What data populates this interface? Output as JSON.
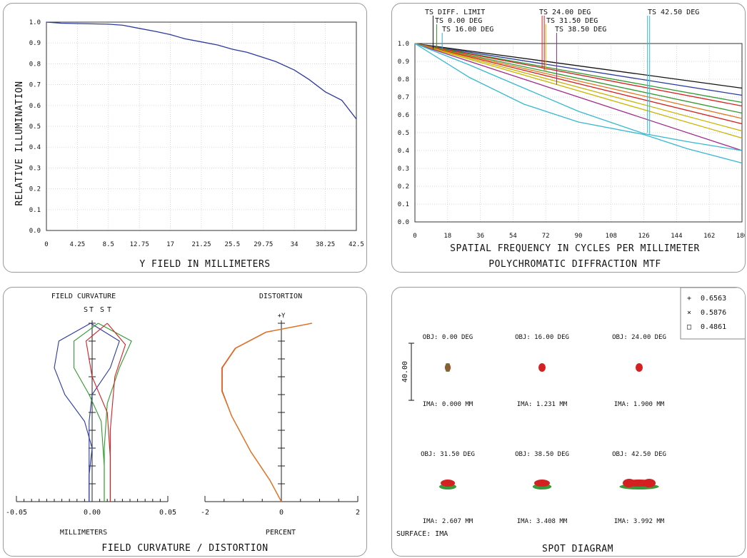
{
  "chart_data": [
    {
      "type": "line",
      "xlabel": "Y FIELD IN MILLIMETERS",
      "ylabel": "RELATIVE ILLUMINATION",
      "xlim": [
        0,
        42.5
      ],
      "ylim": [
        0,
        1.0
      ],
      "x_ticks": [
        "0",
        "4.25",
        "8.5",
        "12.75",
        "17",
        "21.25",
        "25.5",
        "29.75",
        "34",
        "38.25",
        "42.5"
      ],
      "y_ticks": [
        "0.0",
        "0.1",
        "0.2",
        "0.3",
        "0.4",
        "0.5",
        "0.6",
        "0.7",
        "0.8",
        "0.9",
        "1.0"
      ],
      "grid": true,
      "color": "#2b3a9c",
      "series": [
        {
          "x": [
            0,
            2,
            4.25,
            8.5,
            10.5,
            12.75,
            15,
            17,
            19,
            21.25,
            23.5,
            25.5,
            27.5,
            29.75,
            31.5,
            34,
            36,
            38.25,
            40.5,
            42.5
          ],
          "y": [
            1.0,
            0.995,
            0.993,
            0.99,
            0.985,
            0.97,
            0.955,
            0.94,
            0.92,
            0.905,
            0.89,
            0.87,
            0.855,
            0.83,
            0.81,
            0.77,
            0.725,
            0.665,
            0.625,
            0.535
          ]
        }
      ]
    },
    {
      "type": "line",
      "title": "POLYCHROMATIC DIFFRACTION MTF",
      "xlabel": "SPATIAL FREQUENCY IN CYCLES PER MILLIMETER",
      "xlim": [
        0,
        180
      ],
      "ylim": [
        0,
        1.0
      ],
      "x_ticks": [
        "0",
        "18",
        "36",
        "54",
        "72",
        "90",
        "108",
        "126",
        "144",
        "162",
        "180"
      ],
      "y_ticks": [
        "0.0",
        "0.1",
        "0.2",
        "0.3",
        "0.4",
        "0.5",
        "0.6",
        "0.7",
        "0.8",
        "0.9",
        "1.0"
      ],
      "grid": true,
      "legend": [
        {
          "label": "TS DIFF. LIMIT",
          "color": "#111111"
        },
        {
          "label": "TS 0.00 DEG",
          "color": "#2e9a2e"
        },
        {
          "label": "TS 16.00 DEG",
          "color": "#2bb0c8"
        },
        {
          "label": "TS 24.00 DEG",
          "color": "#d42020"
        },
        {
          "label": "TS 31.50 DEG",
          "color": "#c8b400"
        },
        {
          "label": "TS 38.50 DEG",
          "color": "#a02a8c"
        },
        {
          "label": "TS 42.50 DEG",
          "color": "#35b8d0"
        }
      ],
      "series": [
        {
          "color": "#111111",
          "x": [
            0,
            180
          ],
          "y": [
            1.0,
            0.75
          ]
        },
        {
          "color": "#2b3a9c",
          "x": [
            0,
            180
          ],
          "y": [
            1.0,
            0.71
          ]
        },
        {
          "color": "#2e9a2e",
          "x": [
            0,
            180
          ],
          "y": [
            1.0,
            0.67
          ]
        },
        {
          "color": "#d42020",
          "x": [
            0,
            180
          ],
          "y": [
            1.0,
            0.65
          ]
        },
        {
          "color": "#2e9a2e",
          "x": [
            0,
            180
          ],
          "y": [
            1.0,
            0.61
          ]
        },
        {
          "color": "#e07820",
          "x": [
            0,
            180
          ],
          "y": [
            1.0,
            0.58
          ]
        },
        {
          "color": "#d42020",
          "x": [
            0,
            180
          ],
          "y": [
            1.0,
            0.55
          ]
        },
        {
          "color": "#c8b400",
          "x": [
            0,
            180
          ],
          "y": [
            1.0,
            0.51
          ]
        },
        {
          "color": "#c8b400",
          "x": [
            0,
            180
          ],
          "y": [
            1.0,
            0.47
          ]
        },
        {
          "color": "#a02a8c",
          "x": [
            0,
            180
          ],
          "y": [
            1.0,
            0.4
          ]
        },
        {
          "color": "#35b8d0",
          "x": [
            0,
            30,
            60,
            90,
            126,
            150,
            180
          ],
          "y": [
            1.0,
            0.88,
            0.75,
            0.62,
            0.495,
            0.45,
            0.4
          ]
        },
        {
          "color": "#35b8d0",
          "x": [
            0,
            30,
            60,
            90,
            126,
            150,
            180
          ],
          "y": [
            1.0,
            0.81,
            0.66,
            0.56,
            0.49,
            0.41,
            0.33
          ]
        }
      ]
    },
    {
      "type": "line",
      "title": "FIELD CURVATURE",
      "xlabel": "MILLIMETERS",
      "xlim": [
        -0.05,
        0.05
      ],
      "x_ticks": [
        "-0.05",
        "0.00",
        "0.05"
      ],
      "labels": [
        "S",
        "T",
        "S",
        "T"
      ],
      "series": [
        {
          "color": "#2b3a9c",
          "x": [
            -0.001,
            -0.022,
            -0.025,
            -0.018,
            -0.005,
            0.0,
            -0.002,
            -0.002
          ],
          "y": [
            1.0,
            0.9,
            0.75,
            0.6,
            0.45,
            0.3,
            0.15,
            0.0
          ]
        },
        {
          "color": "#2b3a9c",
          "x": [
            -0.001,
            0.018,
            0.012,
            0.0,
            -0.002,
            -0.002,
            -0.002
          ],
          "y": [
            1.0,
            0.9,
            0.75,
            0.6,
            0.45,
            0.2,
            0.0
          ]
        },
        {
          "color": "#2e9a2e",
          "x": [
            0.004,
            -0.012,
            -0.012,
            -0.002,
            0.006,
            0.008,
            0.008
          ],
          "y": [
            1.0,
            0.9,
            0.75,
            0.6,
            0.45,
            0.2,
            0.0
          ]
        },
        {
          "color": "#2e9a2e",
          "x": [
            0.004,
            0.026,
            0.018,
            0.01,
            0.008,
            0.008
          ],
          "y": [
            1.0,
            0.9,
            0.75,
            0.55,
            0.3,
            0.0
          ]
        },
        {
          "color": "#d42020",
          "x": [
            0.01,
            -0.004,
            0.0,
            0.01,
            0.012,
            0.012
          ],
          "y": [
            1.0,
            0.9,
            0.7,
            0.5,
            0.25,
            0.0
          ]
        },
        {
          "color": "#d42020",
          "x": [
            0.01,
            0.022,
            0.015,
            0.012,
            0.012
          ],
          "y": [
            1.0,
            0.88,
            0.7,
            0.4,
            0.0
          ]
        }
      ]
    },
    {
      "type": "line",
      "title": "DISTORTION",
      "xlabel": "PERCENT",
      "axis_label": "+Y",
      "xlim": [
        -2,
        2
      ],
      "x_ticks": [
        "-2",
        "0",
        "2"
      ],
      "series": [
        {
          "color": "#d42020",
          "x": [
            0,
            -0.3,
            -0.8,
            -1.3,
            -1.55,
            -1.55,
            -1.2,
            -0.4,
            0.8
          ],
          "y": [
            0.0,
            0.12,
            0.28,
            0.48,
            0.62,
            0.75,
            0.86,
            0.95,
            1.0
          ]
        },
        {
          "color": "#e07820",
          "x": [
            0,
            -0.3,
            -0.8,
            -1.3,
            -1.56,
            -1.56,
            -1.21,
            -0.41,
            0.8
          ],
          "y": [
            0.0,
            0.12,
            0.28,
            0.48,
            0.62,
            0.75,
            0.86,
            0.95,
            1.0
          ]
        }
      ]
    }
  ],
  "panel3": {
    "footer": "FIELD CURVATURE / DISTORTION"
  },
  "spot": {
    "title": "SPOT DIAGRAM",
    "surface": "SURFACE: IMA",
    "scale_label": "40.00",
    "legend": [
      {
        "symbol": "+",
        "value": "0.6563",
        "color": "#2b3a9c"
      },
      {
        "symbol": "×",
        "value": "0.5876",
        "color": "#2e9a2e"
      },
      {
        "symbol": "□",
        "value": "0.4861",
        "color": "#d42020"
      }
    ],
    "spots": [
      {
        "obj": "OBJ: 0.00 DEG",
        "ima": "IMA: 0.000 MM"
      },
      {
        "obj": "OBJ: 16.00 DEG",
        "ima": "IMA: 1.231 MM"
      },
      {
        "obj": "OBJ: 24.00 DEG",
        "ima": "IMA: 1.900 MM"
      },
      {
        "obj": "OBJ: 31.50 DEG",
        "ima": "IMA: 2.607 MM"
      },
      {
        "obj": "OBJ: 38.50 DEG",
        "ima": "IMA: 3.408 MM"
      },
      {
        "obj": "OBJ: 42.50 DEG",
        "ima": "IMA: 3.992 MM"
      }
    ]
  }
}
